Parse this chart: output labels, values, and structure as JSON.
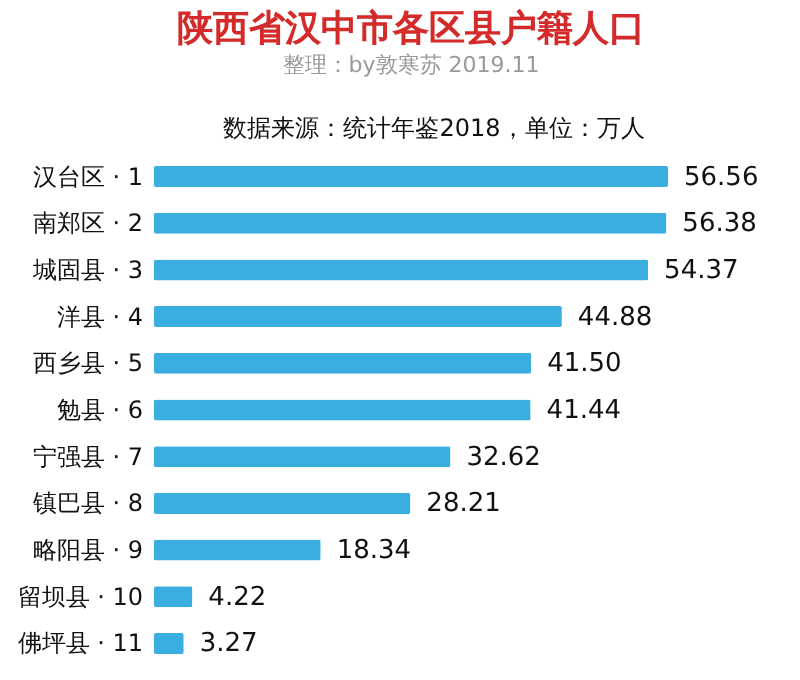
{
  "chart_data": {
    "type": "bar",
    "orientation": "horizontal",
    "title": "陕西省汉中市各区县户籍人口",
    "subtitle": "整理：by敦寒苏 2019.11",
    "annotations": [
      "数据来源：统计年鉴2018，单位：万人"
    ],
    "categories": [
      "汉台区 · 1",
      "南郑区 · 2",
      "城固县 · 3",
      "洋县 · 4",
      "西乡县 · 5",
      "勉县 · 6",
      "宁强县 · 7",
      "镇巴县 · 8",
      "略阳县 · 9",
      "留坝县 · 10",
      "佛坪县 · 11"
    ],
    "values": [
      56.56,
      56.38,
      54.37,
      44.88,
      41.5,
      41.44,
      32.62,
      28.21,
      18.34,
      4.22,
      3.27
    ],
    "value_labels": [
      "56.56",
      "56.38",
      "54.37",
      "44.88",
      "41.50",
      "41.44",
      "32.62",
      "28.21",
      "18.34",
      "4.22",
      "3.27"
    ],
    "color": "#3aaee0"
  }
}
